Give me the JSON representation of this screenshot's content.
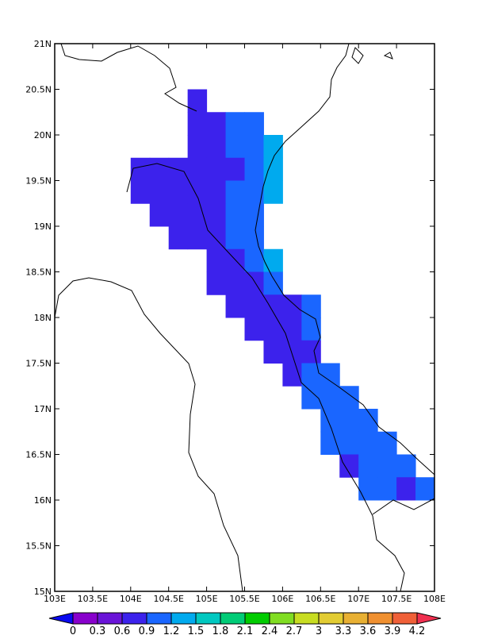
{
  "chart_data": {
    "type": "grid",
    "xlim": [
      103,
      108
    ],
    "ylim": [
      15,
      21
    ],
    "cell_size": 0.25,
    "xticks": [
      {
        "value": 103,
        "label": "103E"
      },
      {
        "value": 103.5,
        "label": "103.5E"
      },
      {
        "value": 104,
        "label": "104E"
      },
      {
        "value": 104.5,
        "label": "104.5E"
      },
      {
        "value": 105,
        "label": "105E"
      },
      {
        "value": 105.5,
        "label": "105.5E"
      },
      {
        "value": 106,
        "label": "106E"
      },
      {
        "value": 106.5,
        "label": "106.5E"
      },
      {
        "value": 107,
        "label": "107E"
      },
      {
        "value": 107.5,
        "label": "107.5E"
      },
      {
        "value": 108,
        "label": "108E"
      }
    ],
    "yticks": [
      {
        "value": 15,
        "label": "15N"
      },
      {
        "value": 15.5,
        "label": "15.5N"
      },
      {
        "value": 16,
        "label": "16N"
      },
      {
        "value": 16.5,
        "label": "16.5N"
      },
      {
        "value": 17,
        "label": "17N"
      },
      {
        "value": 17.5,
        "label": "17.5N"
      },
      {
        "value": 18,
        "label": "18N"
      },
      {
        "value": 18.5,
        "label": "18.5N"
      },
      {
        "value": 19,
        "label": "19N"
      },
      {
        "value": 19.5,
        "label": "19.5N"
      },
      {
        "value": 20,
        "label": "20N"
      },
      {
        "value": 20.5,
        "label": "20.5N"
      },
      {
        "value": 21,
        "label": "21N"
      }
    ],
    "cells": [
      [
        104.75,
        20.25,
        0.75
      ],
      [
        104.75,
        20.0,
        0.75
      ],
      [
        105.0,
        20.0,
        0.75
      ],
      [
        105.25,
        20.0,
        1.05
      ],
      [
        105.5,
        20.0,
        1.05
      ],
      [
        104.75,
        19.75,
        0.75
      ],
      [
        105.0,
        19.75,
        0.75
      ],
      [
        105.25,
        19.75,
        1.05
      ],
      [
        105.5,
        19.75,
        1.05
      ],
      [
        105.75,
        19.75,
        1.35
      ],
      [
        104.0,
        19.5,
        0.75
      ],
      [
        104.25,
        19.5,
        0.75
      ],
      [
        104.5,
        19.5,
        0.75
      ],
      [
        104.75,
        19.5,
        0.75
      ],
      [
        105.0,
        19.5,
        0.75
      ],
      [
        105.25,
        19.5,
        0.75
      ],
      [
        105.5,
        19.5,
        1.05
      ],
      [
        105.75,
        19.5,
        1.35
      ],
      [
        104.0,
        19.25,
        0.75
      ],
      [
        104.25,
        19.25,
        0.75
      ],
      [
        104.5,
        19.25,
        0.75
      ],
      [
        104.75,
        19.25,
        0.75
      ],
      [
        105.0,
        19.25,
        0.75
      ],
      [
        105.25,
        19.25,
        1.05
      ],
      [
        105.5,
        19.25,
        1.05
      ],
      [
        105.75,
        19.25,
        1.35
      ],
      [
        104.25,
        19.0,
        0.75
      ],
      [
        104.5,
        19.0,
        0.75
      ],
      [
        104.75,
        19.0,
        0.75
      ],
      [
        105.0,
        19.0,
        0.75
      ],
      [
        105.25,
        19.0,
        1.05
      ],
      [
        105.5,
        19.0,
        1.05
      ],
      [
        104.5,
        18.75,
        0.75
      ],
      [
        104.75,
        18.75,
        0.75
      ],
      [
        105.0,
        18.75,
        0.75
      ],
      [
        105.25,
        18.75,
        1.05
      ],
      [
        105.5,
        18.75,
        1.05
      ],
      [
        105.0,
        18.5,
        0.75
      ],
      [
        105.25,
        18.5,
        0.75
      ],
      [
        105.5,
        18.5,
        1.05
      ],
      [
        105.75,
        18.5,
        1.35
      ],
      [
        105.0,
        18.25,
        0.75
      ],
      [
        105.25,
        18.25,
        0.75
      ],
      [
        105.5,
        18.25,
        0.75
      ],
      [
        105.75,
        18.25,
        1.05
      ],
      [
        105.25,
        18.0,
        0.75
      ],
      [
        105.5,
        18.0,
        0.75
      ],
      [
        105.75,
        18.0,
        0.75
      ],
      [
        106.0,
        18.0,
        0.75
      ],
      [
        106.25,
        18.0,
        1.05
      ],
      [
        105.5,
        17.75,
        0.75
      ],
      [
        105.75,
        17.75,
        0.75
      ],
      [
        106.0,
        17.75,
        0.75
      ],
      [
        106.25,
        17.75,
        1.05
      ],
      [
        105.75,
        17.5,
        0.75
      ],
      [
        106.0,
        17.5,
        0.75
      ],
      [
        106.25,
        17.5,
        0.75
      ],
      [
        106.0,
        17.25,
        0.75
      ],
      [
        106.25,
        17.25,
        1.05
      ],
      [
        106.5,
        17.25,
        1.05
      ],
      [
        106.25,
        17.0,
        1.05
      ],
      [
        106.5,
        17.0,
        1.05
      ],
      [
        106.75,
        17.0,
        1.05
      ],
      [
        106.5,
        16.75,
        1.05
      ],
      [
        106.75,
        16.75,
        1.05
      ],
      [
        107.0,
        16.75,
        1.05
      ],
      [
        106.5,
        16.5,
        1.05
      ],
      [
        106.75,
        16.5,
        1.05
      ],
      [
        107.0,
        16.5,
        1.05
      ],
      [
        107.25,
        16.5,
        1.05
      ],
      [
        106.75,
        16.25,
        0.75
      ],
      [
        107.0,
        16.25,
        1.05
      ],
      [
        107.25,
        16.25,
        1.05
      ],
      [
        107.5,
        16.25,
        1.05
      ],
      [
        107.0,
        16.0,
        1.05
      ],
      [
        107.25,
        16.0,
        1.05
      ],
      [
        107.5,
        16.0,
        0.75
      ],
      [
        107.75,
        16.0,
        1.05
      ]
    ],
    "levels": [
      0,
      0.3,
      0.6,
      0.9,
      1.2,
      1.5,
      1.8,
      2.1,
      2.4,
      2.7,
      3,
      3.3,
      3.6,
      3.9,
      4.2
    ],
    "colors": [
      "#0a0af0",
      "#8800cc",
      "#6a14d8",
      "#3c22ec",
      "#1a66ff",
      "#00aaee",
      "#00c8c0",
      "#00cc77",
      "#00cc00",
      "#80dd22",
      "#c8dd22",
      "#e2cc33",
      "#e8b033",
      "#f09030",
      "#f06038",
      "#f03050",
      "#ee1199"
    ]
  }
}
